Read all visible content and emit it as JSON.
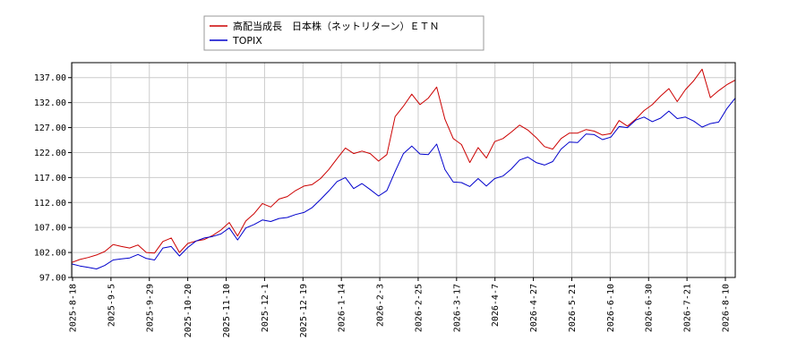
{
  "chart_data": {
    "type": "line",
    "title": "",
    "xlabel": "",
    "ylabel": "",
    "ylim": [
      97.0,
      140.0
    ],
    "yticks": [
      "97.00",
      "102.00",
      "107.00",
      "112.00",
      "117.00",
      "122.00",
      "127.00",
      "132.00",
      "137.00"
    ],
    "xticks": [
      "2025-8-18",
      "2025-9-5",
      "2025-9-29",
      "2025-10-20",
      "2025-11-10",
      "2025-12-1",
      "2025-12-19",
      "2026-1-14",
      "2026-2-3",
      "2026-2-25",
      "2026-3-17",
      "2026-4-7",
      "2026-4-27",
      "2026-5-21",
      "2026-6-10",
      "2026-6-30",
      "2026-7-21",
      "2026-8-10"
    ],
    "grid": true,
    "legend_position": "top-center",
    "series": [
      {
        "name": "高配当成長　日本株（ネットリターン）ＥＴＮ",
        "color": "#cc0000",
        "values": [
          100.0,
          100.6,
          101.0,
          101.5,
          102.2,
          103.6,
          103.2,
          102.9,
          103.5,
          102.0,
          101.9,
          104.2,
          104.9,
          102.0,
          103.8,
          104.3,
          104.6,
          105.4,
          106.5,
          108.0,
          105.3,
          108.3,
          109.8,
          111.8,
          111.1,
          112.7,
          113.2,
          114.4,
          115.3,
          115.6,
          116.8,
          118.6,
          120.8,
          122.9,
          121.8,
          122.3,
          121.8,
          120.3,
          121.6,
          129.2,
          131.3,
          133.7,
          131.6,
          132.9,
          135.1,
          128.7,
          124.8,
          123.6,
          120.0,
          123.0,
          120.9,
          124.2,
          124.8,
          126.1,
          127.5,
          126.5,
          125.0,
          123.2,
          122.7,
          124.8,
          125.9,
          125.9,
          126.6,
          126.3,
          125.5,
          125.8,
          128.4,
          127.3,
          128.7,
          130.4,
          131.6,
          133.3,
          134.8,
          132.2,
          134.6,
          136.4,
          138.7,
          133.0,
          134.4,
          135.6,
          136.5
        ]
      },
      {
        "name": "TOPIX",
        "color": "#0000cc",
        "values": [
          99.7,
          99.3,
          99.0,
          98.7,
          99.4,
          100.5,
          100.7,
          100.9,
          101.6,
          100.8,
          100.5,
          102.9,
          103.2,
          101.3,
          103.0,
          104.3,
          104.9,
          105.2,
          105.7,
          106.9,
          104.5,
          106.9,
          107.6,
          108.5,
          108.2,
          108.8,
          109.0,
          109.6,
          110.0,
          111.0,
          112.6,
          114.3,
          116.2,
          117.0,
          114.8,
          115.8,
          114.6,
          113.3,
          114.4,
          118.2,
          121.8,
          123.3,
          121.7,
          121.6,
          123.7,
          118.6,
          116.1,
          116.0,
          115.2,
          116.8,
          115.3,
          116.8,
          117.3,
          118.7,
          120.5,
          121.1,
          120.0,
          119.5,
          120.2,
          122.7,
          124.1,
          124.0,
          125.7,
          125.6,
          124.6,
          125.1,
          127.2,
          127.0,
          128.5,
          129.1,
          128.2,
          128.9,
          130.3,
          128.8,
          129.1,
          128.3,
          127.1,
          127.8,
          128.1,
          130.8,
          132.9
        ]
      }
    ]
  }
}
